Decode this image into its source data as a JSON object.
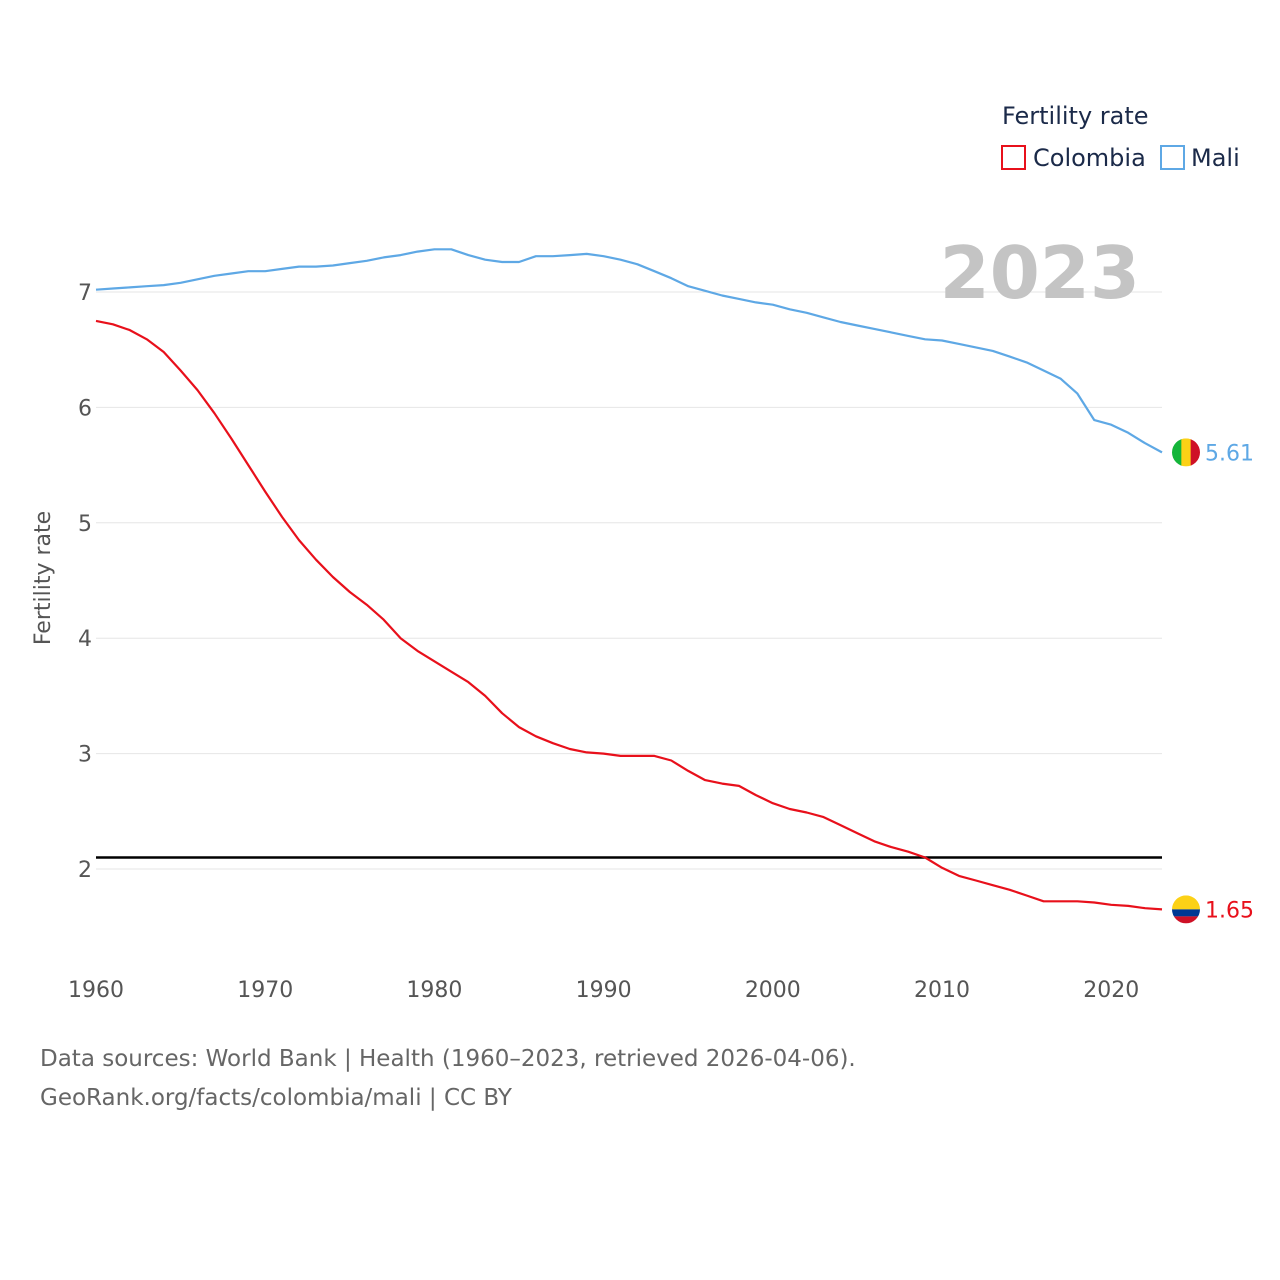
{
  "chart_data": {
    "type": "line",
    "ylabel": "Fertility rate",
    "xlabel": "",
    "legend_title": "Fertility rate",
    "legend_position": "top-right",
    "current_year_label": "2023",
    "xlim": [
      1960,
      2023
    ],
    "ylim": [
      1.4,
      7.8
    ],
    "x_ticks": [
      "1960",
      "1970",
      "1980",
      "1990",
      "2000",
      "2010",
      "2020"
    ],
    "y_ticks": [
      "2",
      "3",
      "4",
      "5",
      "6",
      "7"
    ],
    "reference_line": 2.1,
    "x": [
      1960,
      1961,
      1962,
      1963,
      1964,
      1965,
      1966,
      1967,
      1968,
      1969,
      1970,
      1971,
      1972,
      1973,
      1974,
      1975,
      1976,
      1977,
      1978,
      1979,
      1980,
      1981,
      1982,
      1983,
      1984,
      1985,
      1986,
      1987,
      1988,
      1989,
      1990,
      1991,
      1992,
      1993,
      1994,
      1995,
      1996,
      1997,
      1998,
      1999,
      2000,
      2001,
      2002,
      2003,
      2004,
      2005,
      2006,
      2007,
      2008,
      2009,
      2010,
      2011,
      2012,
      2013,
      2014,
      2015,
      2016,
      2017,
      2018,
      2019,
      2020,
      2021,
      2022,
      2023
    ],
    "series": [
      {
        "name": "Colombia",
        "color": "#e8101b",
        "end_label": "1.65",
        "values": [
          6.75,
          6.72,
          6.67,
          6.59,
          6.48,
          6.32,
          6.15,
          5.95,
          5.73,
          5.5,
          5.27,
          5.05,
          4.85,
          4.68,
          4.53,
          4.4,
          4.29,
          4.16,
          4.0,
          3.89,
          3.8,
          3.71,
          3.62,
          3.5,
          3.35,
          3.23,
          3.15,
          3.09,
          3.04,
          3.01,
          3.0,
          2.98,
          2.98,
          2.98,
          2.94,
          2.85,
          2.77,
          2.74,
          2.72,
          2.64,
          2.57,
          2.52,
          2.49,
          2.45,
          2.38,
          2.31,
          2.24,
          2.19,
          2.15,
          2.1,
          2.01,
          1.94,
          1.9,
          1.86,
          1.82,
          1.77,
          1.72,
          1.72,
          1.72,
          1.71,
          1.69,
          1.68,
          1.66,
          1.65
        ]
      },
      {
        "name": "Mali",
        "color": "#5ea8e5",
        "end_label": "5.61",
        "values": [
          7.02,
          7.03,
          7.04,
          7.05,
          7.06,
          7.08,
          7.11,
          7.14,
          7.16,
          7.18,
          7.18,
          7.2,
          7.22,
          7.22,
          7.23,
          7.25,
          7.27,
          7.3,
          7.32,
          7.35,
          7.37,
          7.37,
          7.32,
          7.28,
          7.26,
          7.26,
          7.31,
          7.31,
          7.32,
          7.33,
          7.31,
          7.28,
          7.24,
          7.18,
          7.12,
          7.05,
          7.01,
          6.97,
          6.94,
          6.91,
          6.89,
          6.85,
          6.82,
          6.78,
          6.74,
          6.71,
          6.68,
          6.65,
          6.62,
          6.59,
          6.58,
          6.55,
          6.52,
          6.49,
          6.44,
          6.39,
          6.32,
          6.25,
          6.12,
          5.89,
          5.85,
          5.78,
          5.69,
          5.61
        ]
      }
    ]
  },
  "footer": {
    "sources": "Data sources: World Bank | Health (1960–2023, retrieved 2026-04-06).",
    "credit": "GeoRank.org/facts/colombia/mali | CC BY"
  },
  "flags": {
    "colombia": [
      "#fcd116",
      "#003893",
      "#ce1126"
    ],
    "mali": [
      "#14b53a",
      "#fcd116",
      "#ce1126"
    ]
  }
}
